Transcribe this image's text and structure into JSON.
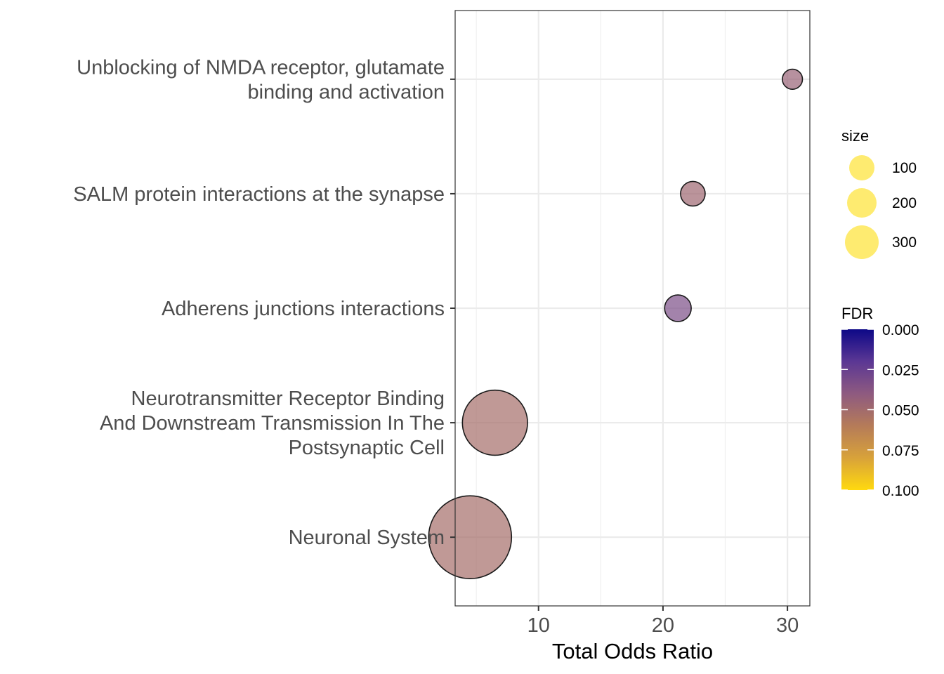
{
  "chart_data": {
    "type": "scatter",
    "title": "",
    "xlabel": "Total Odds Ratio",
    "ylabel": "",
    "xlim": [
      3.3,
      31.8
    ],
    "x_ticks": [
      10,
      20,
      30
    ],
    "grid": true,
    "legend_position": "right",
    "categories": [
      "Neuronal System",
      "Neurotransmitter Receptor Binding\nAnd Downstream Transmission In The\nPostsynaptic Cell",
      "Adherens junctions interactions",
      "SALM protein interactions at the synapse",
      "Unblocking of NMDA receptor, glutamate\nbinding and activation"
    ],
    "points": [
      {
        "category": "Neuronal System",
        "x": 4.5,
        "size": 340,
        "fdr": 0.052
      },
      {
        "category": "Neurotransmitter Receptor Binding\nAnd Downstream Transmission In The\nPostsynaptic Cell",
        "x": 6.5,
        "size": 210,
        "fdr": 0.052
      },
      {
        "category": "Adherens junctions interactions",
        "x": 21.2,
        "size": 35,
        "fdr": 0.033
      },
      {
        "category": "SALM protein interactions at the synapse",
        "x": 22.4,
        "size": 30,
        "fdr": 0.048
      },
      {
        "category": "Unblocking of NMDA receptor, glutamate\nbinding and activation",
        "x": 30.4,
        "size": 20,
        "fdr": 0.045
      }
    ],
    "size_legend": {
      "title": "size",
      "entries": [
        {
          "label": "100",
          "value": 100
        },
        {
          "label": "200",
          "value": 200
        },
        {
          "label": "300",
          "value": 300
        }
      ],
      "color": "#FDE333"
    },
    "color_legend": {
      "title": "FDR",
      "range": [
        0.0,
        0.1
      ],
      "ticks": [
        {
          "label": "0.000",
          "value": 0.0
        },
        {
          "label": "0.025",
          "value": 0.025
        },
        {
          "label": "0.050",
          "value": 0.05
        },
        {
          "label": "0.075",
          "value": 0.075
        },
        {
          "label": "0.100",
          "value": 0.1
        }
      ],
      "colors": [
        "#0D0887",
        "#5B3794",
        "#8E5A80",
        "#B57B59",
        "#D8A23A",
        "#FFD90F"
      ]
    },
    "point_opacity": 0.7,
    "point_outline": "#1a1a1a"
  }
}
